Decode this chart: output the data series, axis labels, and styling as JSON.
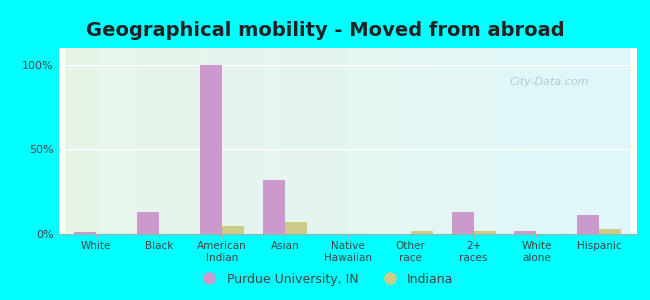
{
  "title": "Geographical mobility - Moved from abroad",
  "categories": [
    "White",
    "Black",
    "American\nIndian",
    "Asian",
    "Native\nHawaiian",
    "Other\nrace",
    "2+\nraces",
    "White\nalone",
    "Hispanic"
  ],
  "purdue_values": [
    1.0,
    13.0,
    100.0,
    32.0,
    0.0,
    0.0,
    13.0,
    2.0,
    11.0
  ],
  "indiana_values": [
    0.0,
    0.0,
    5.0,
    7.0,
    0.0,
    2.0,
    2.0,
    0.0,
    3.0
  ],
  "purdue_color": "#cc99cc",
  "indiana_color": "#cccc88",
  "purdue_label": "Purdue University, IN",
  "indiana_label": "Indiana",
  "outer_bg": "#00ffff",
  "yticks": [
    0,
    50,
    100
  ],
  "ytick_labels": [
    "0%",
    "50%",
    "100%"
  ],
  "ylim": [
    0,
    110
  ],
  "title_fontsize": 14,
  "bar_width": 0.35,
  "watermark": "City-Data.com"
}
